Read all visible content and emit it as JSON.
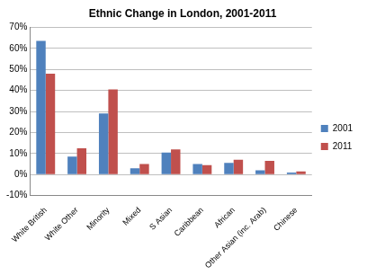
{
  "chart_data": {
    "type": "bar",
    "title": "Ethnic Change in London, 2001-2011",
    "categories": [
      "White British",
      "White Other",
      "Minority",
      "Mixed",
      "S Asian",
      "Caribbean",
      "African",
      "Other Asian (inc. Arab)",
      "Chinese"
    ],
    "series": [
      {
        "name": "2001",
        "color": "#4f81bd",
        "values": [
          63.5,
          8.5,
          29,
          3,
          10.5,
          5,
          5.5,
          2,
          1
        ]
      },
      {
        "name": "2011",
        "color": "#c0504d",
        "values": [
          48,
          12.5,
          40.5,
          5,
          12,
          4.5,
          7,
          6.5,
          1.5
        ]
      }
    ],
    "ylim": [
      -10,
      70
    ],
    "yticks": [
      {
        "value": -10,
        "label": "-10%"
      },
      {
        "value": 0,
        "label": "0%"
      },
      {
        "value": 10,
        "label": "10%"
      },
      {
        "value": 20,
        "label": "20%"
      },
      {
        "value": 30,
        "label": "30%"
      },
      {
        "value": 40,
        "label": "40%"
      },
      {
        "value": 50,
        "label": "50%"
      },
      {
        "value": 60,
        "label": "60%"
      },
      {
        "value": 70,
        "label": "70%"
      }
    ],
    "grid": true,
    "legend": "right"
  }
}
